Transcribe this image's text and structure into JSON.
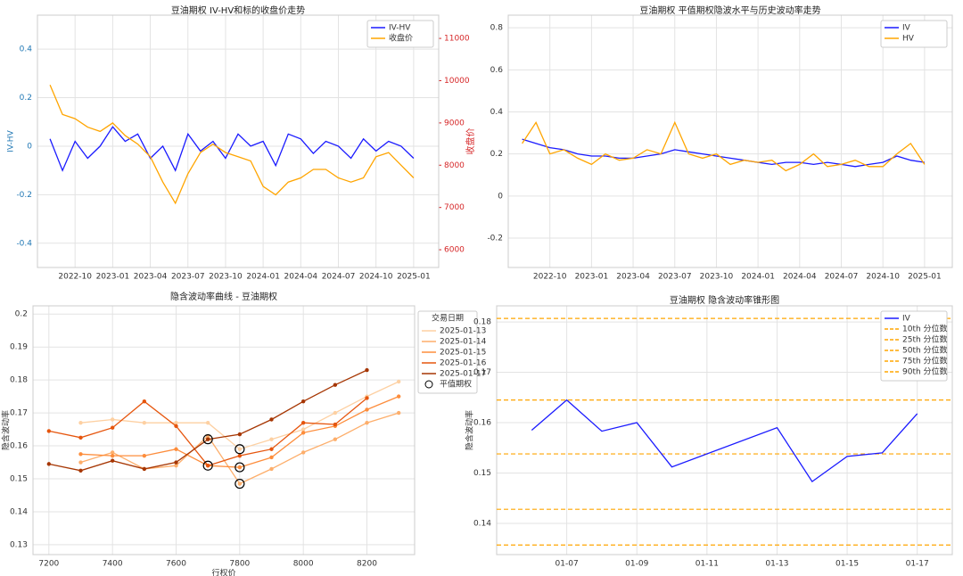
{
  "chart_data": [
    {
      "type": "line",
      "title": "豆油期权 IV-HV和标的收盘价走势",
      "ylabel": "IV-HV",
      "y2label": "收盘价",
      "x": [
        "2022-08",
        "2022-09",
        "2022-10",
        "2022-11",
        "2022-12",
        "2023-01",
        "2023-02",
        "2023-03",
        "2023-04",
        "2023-05",
        "2023-06",
        "2023-07",
        "2023-08",
        "2023-09",
        "2023-10",
        "2023-11",
        "2023-12",
        "2024-01",
        "2024-02",
        "2024-03",
        "2024-04",
        "2024-05",
        "2024-06",
        "2024-07",
        "2024-08",
        "2024-09",
        "2024-10",
        "2024-11",
        "2024-12",
        "2025-01"
      ],
      "xlim": [
        "2022-07",
        "2025-03"
      ],
      "xticks": [
        "2022-10",
        "2023-01",
        "2023-04",
        "2023-07",
        "2023-10",
        "2024-01",
        "2024-04",
        "2024-07",
        "2024-10",
        "2025-01"
      ],
      "ylim": [
        -0.5,
        0.54
      ],
      "yticks": [
        -0.4,
        -0.2,
        0.0,
        0.2,
        0.4
      ],
      "y2lim": [
        5580,
        11550
      ],
      "y2ticks": [
        6000,
        7000,
        8000,
        9000,
        10000,
        11000
      ],
      "grid": true,
      "legend": "upper right",
      "ytick_color": "#1f77b4",
      "y2tick_color": "#d62728",
      "series": [
        {
          "name": "IV-HV",
          "color": "#1a1aff",
          "values": [
            0.03,
            -0.1,
            0.02,
            -0.05,
            0.0,
            0.08,
            0.02,
            0.05,
            -0.05,
            0.0,
            -0.1,
            0.05,
            -0.02,
            0.02,
            -0.05,
            0.05,
            0.0,
            0.02,
            -0.08,
            0.05,
            0.03,
            -0.03,
            0.02,
            0.0,
            -0.05,
            0.03,
            -0.02,
            0.02,
            0.0,
            -0.05
          ]
        },
        {
          "name": "收盘价",
          "color": "#ffa500",
          "axis": "y2",
          "values": [
            9900,
            9200,
            9100,
            8900,
            8800,
            9000,
            8700,
            8500,
            8200,
            7600,
            7100,
            7800,
            8300,
            8500,
            8300,
            8200,
            8100,
            7500,
            7300,
            7600,
            7700,
            7900,
            7900,
            7700,
            7600,
            7700,
            8200,
            8300,
            8000,
            7700
          ]
        }
      ]
    },
    {
      "type": "line",
      "title": "豆油期权 平值期权隐波水平与历史波动率走势",
      "x": [
        "2022-08",
        "2022-09",
        "2022-10",
        "2022-11",
        "2022-12",
        "2023-01",
        "2023-02",
        "2023-03",
        "2023-04",
        "2023-05",
        "2023-06",
        "2023-07",
        "2023-08",
        "2023-09",
        "2023-10",
        "2023-11",
        "2023-12",
        "2024-01",
        "2024-02",
        "2024-03",
        "2024-04",
        "2024-05",
        "2024-06",
        "2024-07",
        "2024-08",
        "2024-09",
        "2024-10",
        "2024-11",
        "2024-12",
        "2025-01"
      ],
      "xlim": [
        "2022-07",
        "2025-03"
      ],
      "xticks": [
        "2022-10",
        "2023-01",
        "2023-04",
        "2023-07",
        "2023-10",
        "2024-01",
        "2024-04",
        "2024-07",
        "2024-10",
        "2025-01"
      ],
      "ylim": [
        -0.34,
        0.86
      ],
      "yticks": [
        -0.2,
        0.0,
        0.2,
        0.4,
        0.6,
        0.8
      ],
      "grid": true,
      "legend": "upper right",
      "series": [
        {
          "name": "IV",
          "color": "#1a1aff",
          "values": [
            0.27,
            0.25,
            0.23,
            0.22,
            0.2,
            0.19,
            0.19,
            0.18,
            0.18,
            0.19,
            0.2,
            0.22,
            0.21,
            0.2,
            0.19,
            0.18,
            0.17,
            0.16,
            0.15,
            0.16,
            0.16,
            0.15,
            0.16,
            0.15,
            0.14,
            0.15,
            0.16,
            0.19,
            0.17,
            0.16
          ]
        },
        {
          "name": "HV",
          "color": "#ffa500",
          "values": [
            0.25,
            0.35,
            0.2,
            0.22,
            0.18,
            0.15,
            0.2,
            0.17,
            0.18,
            0.22,
            0.2,
            0.35,
            0.2,
            0.18,
            0.2,
            0.15,
            0.17,
            0.16,
            0.17,
            0.12,
            0.15,
            0.2,
            0.14,
            0.15,
            0.17,
            0.14,
            0.14,
            0.2,
            0.25,
            0.15
          ]
        }
      ]
    },
    {
      "type": "line",
      "title": "隐含波动率曲线 - 豆油期权",
      "xlabel": "行权价",
      "ylabel": "隐含波动率",
      "xlim": [
        7150,
        8350
      ],
      "xticks": [
        7200,
        7400,
        7600,
        7800,
        8000,
        8200
      ],
      "ylim": [
        0.127,
        0.2025
      ],
      "yticks": [
        0.13,
        0.14,
        0.15,
        0.16,
        0.17,
        0.18,
        0.19,
        0.2
      ],
      "grid": true,
      "legend": "outside right",
      "legend_title": "交易日期",
      "series": [
        {
          "name": "2025-01-13",
          "color": "#fdd0a2",
          "x": [
            7300,
            7400,
            7500,
            7600,
            7700,
            7800,
            7900,
            8000,
            8100,
            8200,
            8300
          ],
          "values": [
            0.167,
            0.168,
            0.167,
            0.167,
            0.167,
            0.159,
            0.162,
            0.165,
            0.17,
            0.175,
            0.1795
          ]
        },
        {
          "name": "2025-01-14",
          "color": "#fdae6b",
          "x": [
            7300,
            7400,
            7500,
            7600,
            7700,
            7800,
            7900,
            8000,
            8100,
            8200,
            8300
          ],
          "values": [
            0.155,
            0.158,
            0.153,
            0.154,
            0.163,
            0.1485,
            0.153,
            0.158,
            0.162,
            0.167,
            0.17
          ]
        },
        {
          "name": "2025-01-15",
          "color": "#fd8d3c",
          "x": [
            7300,
            7400,
            7500,
            7600,
            7700,
            7800,
            7900,
            8000,
            8100,
            8200,
            8300
          ],
          "values": [
            0.1575,
            0.157,
            0.157,
            0.159,
            0.154,
            0.1535,
            0.1565,
            0.164,
            0.166,
            0.171,
            0.175
          ]
        },
        {
          "name": "2025-01-16",
          "color": "#e6550d",
          "x": [
            7200,
            7300,
            7400,
            7500,
            7600,
            7700,
            7800,
            7900,
            8000,
            8100,
            8200
          ],
          "values": [
            0.1645,
            0.1625,
            0.1655,
            0.1735,
            0.166,
            0.154,
            0.157,
            0.159,
            0.167,
            0.1665,
            0.1745
          ]
        },
        {
          "name": "2025-01-17",
          "color": "#a63603",
          "x": [
            7200,
            7300,
            7400,
            7500,
            7600,
            7700,
            7800,
            7900,
            8000,
            8100,
            8200
          ],
          "values": [
            0.1545,
            0.1525,
            0.1555,
            0.153,
            0.155,
            0.162,
            0.1635,
            0.168,
            0.1735,
            0.1785,
            0.183
          ]
        },
        {
          "name": "平值期权",
          "type": "scatter",
          "color": "#000000",
          "x": [
            7700,
            7700,
            7800,
            7800,
            7800
          ],
          "values": [
            0.162,
            0.154,
            0.159,
            0.1535,
            0.1485
          ]
        }
      ]
    },
    {
      "type": "line",
      "title": "豆油期权 隐含波动率锥形图",
      "ylabel": "隐含波动率",
      "x": [
        "01-06",
        "01-07",
        "01-08",
        "01-09",
        "01-10",
        "01-13",
        "01-14",
        "01-15",
        "01-16",
        "01-17"
      ],
      "xlim": [
        "01-05",
        "01-18"
      ],
      "xticks": [
        "01-07",
        "01-09",
        "01-11",
        "01-13",
        "01-15",
        "01-17"
      ],
      "ylim": [
        0.1338,
        0.1832
      ],
      "yticks": [
        0.14,
        0.15,
        0.16,
        0.17,
        0.18
      ],
      "grid": true,
      "legend": "upper right",
      "series": [
        {
          "name": "IV",
          "color": "#1a1aff",
          "values": [
            0.1585,
            0.1645,
            0.1583,
            0.16,
            0.1512,
            0.159,
            0.1483,
            0.1533,
            0.154,
            0.1618
          ]
        }
      ],
      "hlines": [
        {
          "name": "10th 分位数",
          "color": "#ffa500",
          "value": 0.1357
        },
        {
          "name": "25th 分位数",
          "color": "#ffa500",
          "value": 0.1428
        },
        {
          "name": "50th 分位数",
          "color": "#ffa500",
          "value": 0.1538
        },
        {
          "name": "75th 分位数",
          "color": "#ffa500",
          "value": 0.1645
        },
        {
          "name": "90th 分位数",
          "color": "#ffa500",
          "value": 0.1807
        }
      ]
    }
  ]
}
